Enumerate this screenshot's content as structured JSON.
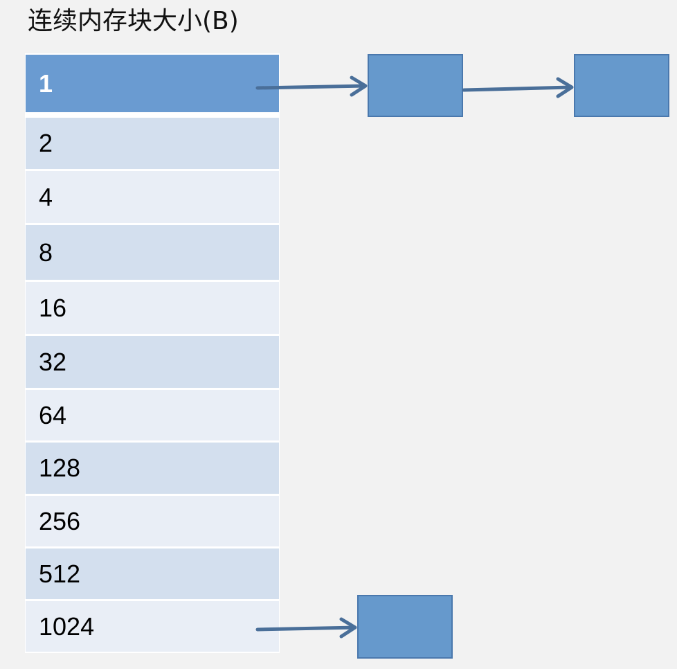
{
  "title": "连续内存块大小(B)",
  "rows": [
    "1",
    "2",
    "4",
    "8",
    "16",
    "32",
    "64",
    "128",
    "256",
    "512",
    "1024"
  ],
  "colors": {
    "background": "#f2f2f2",
    "header_row": "#6a9bd1",
    "row_dark": "#d3dfee",
    "row_light": "#e9eef6",
    "node_fill": "#6699cc",
    "node_border": "#4a78ad",
    "arrow": "#4a6f99"
  }
}
